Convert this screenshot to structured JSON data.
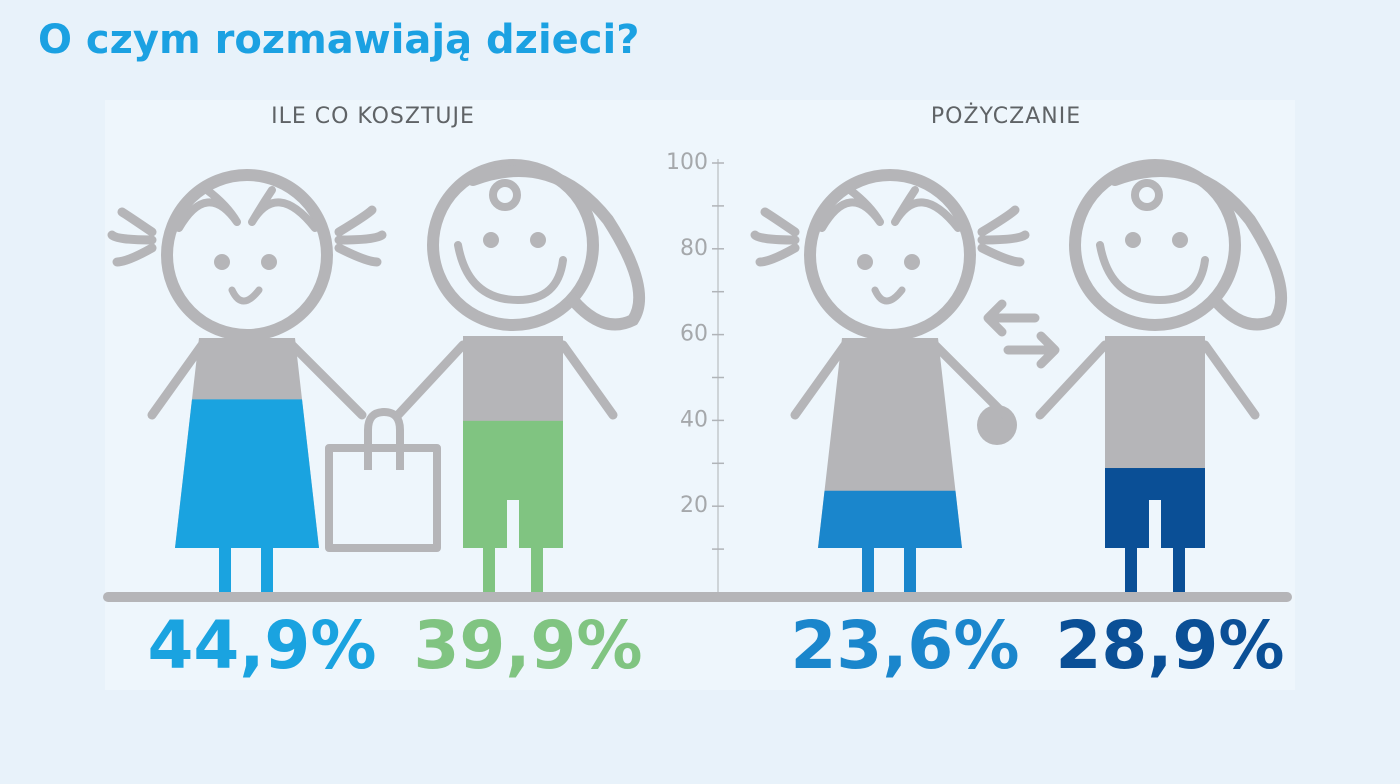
{
  "title": "O czym rozmawiają dzieci?",
  "chart_data": {
    "type": "pictograph",
    "ylim": [
      0,
      100
    ],
    "yticks": [
      20,
      40,
      60,
      80,
      100
    ],
    "panels": [
      {
        "title": "ILE CO KOSZTUJE",
        "values": [
          44.9,
          39.9
        ],
        "value_labels": [
          "44,9%",
          "39,9%"
        ],
        "colors": [
          "#1aa3e0",
          "#80c481"
        ]
      },
      {
        "title": "POŻYCZANIE",
        "values": [
          23.6,
          28.9
        ],
        "value_labels": [
          "23,6%",
          "28,9%"
        ],
        "colors": [
          "#1a86cc",
          "#0a4f96"
        ]
      }
    ]
  }
}
